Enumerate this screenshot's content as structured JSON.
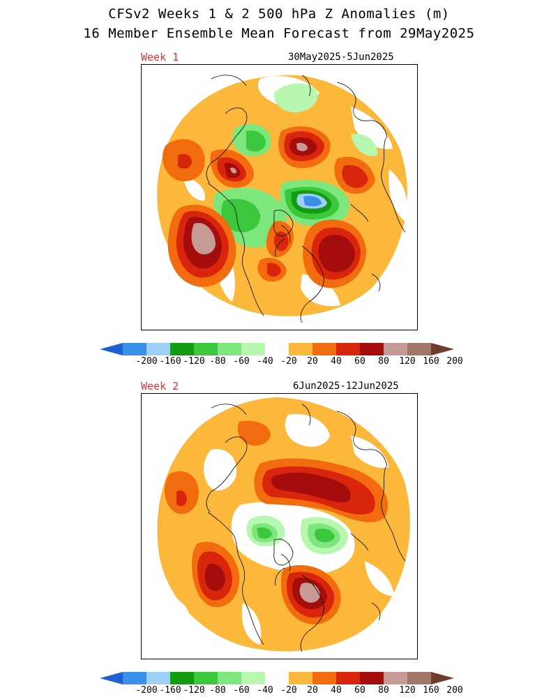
{
  "header": {
    "title_line1": "CFSv2 Weeks 1 & 2 500 hPa Z Anomalies (m)",
    "title_line2": "16 Member Ensemble Mean Forecast from 29May2025"
  },
  "panels": [
    {
      "label": "Week 1",
      "dates": "30May2025-5Jun2025"
    },
    {
      "label": "Week 2",
      "dates": "6Jun2025-12Jun2025"
    }
  ],
  "colorbar": {
    "ticks": [
      "-200",
      "-160",
      "-120",
      "-80",
      "-60",
      "-40",
      "-20",
      "20",
      "40",
      "60",
      "80",
      "120",
      "160",
      "200"
    ],
    "colors": [
      "#1f5fd6",
      "#3a8fe8",
      "#9dd0f5",
      "#119c11",
      "#3cc83c",
      "#7de77d",
      "#b8f7b0",
      "#ffffff",
      "#fbb83a",
      "#f26b0f",
      "#d8250c",
      "#a50d0d",
      "#c79b95",
      "#a07768",
      "#6e3b2c"
    ],
    "units": "m"
  },
  "map_style": {
    "land_outline": "#000000",
    "zero_band": "#ffffff"
  }
}
